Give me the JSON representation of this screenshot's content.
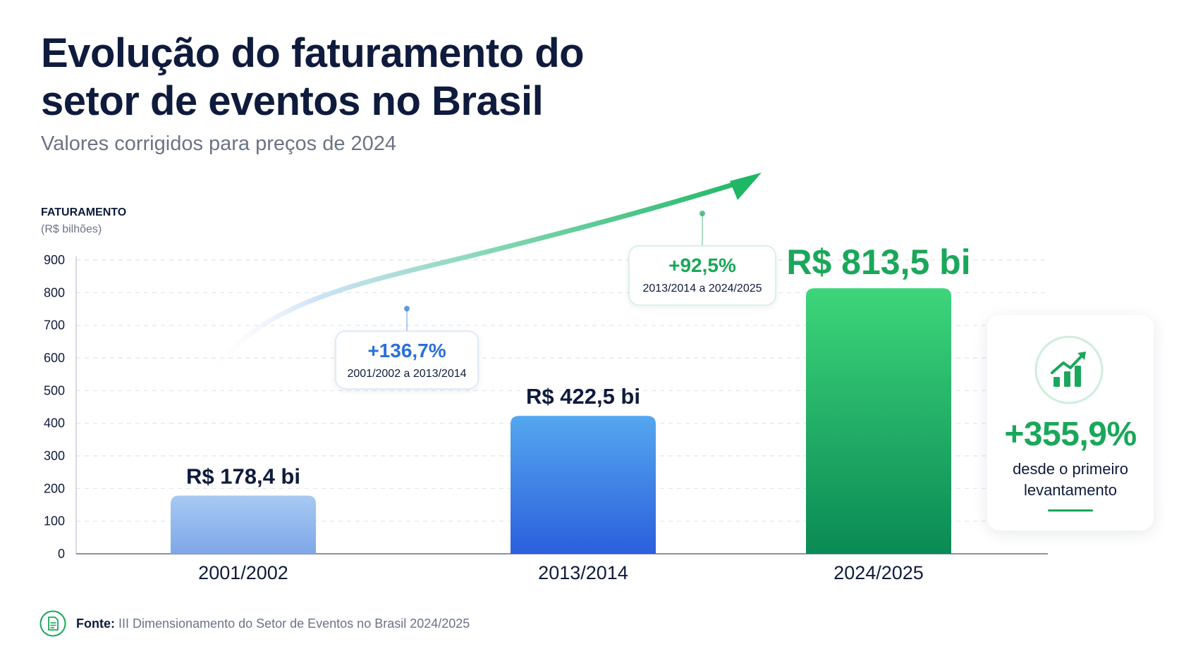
{
  "header": {
    "title_line1": "Evolução do faturamento do",
    "title_line2": "setor de eventos no Brasil",
    "subtitle": "Valores corrigidos para preços de 2024"
  },
  "chart_data": {
    "type": "bar",
    "title": "Evolução do faturamento do setor de eventos no Brasil",
    "subtitle": "Valores corrigidos para preços de 2024",
    "ylabel": "FATURAMENTO",
    "yunit": "(R$ bilhões)",
    "categories": [
      "2001/2002",
      "2013/2014",
      "2024/2025"
    ],
    "values": [
      178.4,
      422.5,
      813.5
    ],
    "value_labels": [
      "R$ 178,4 bi",
      "R$ 422,5 bi",
      "R$ 813,5 bi"
    ],
    "ylim": [
      0,
      900
    ],
    "yticks": [
      0,
      100,
      200,
      300,
      400,
      500,
      600,
      700,
      800,
      900
    ],
    "grid": true,
    "bar_colors": [
      [
        "#a7c9f3",
        "#7ea7e8"
      ],
      [
        "#55a7f0",
        "#2b5fdc"
      ],
      [
        "#3dd57a",
        "#0a8a55"
      ]
    ],
    "value_label_colors": [
      "#0f1b3d",
      "#0f1b3d",
      "#1aa75a"
    ],
    "annotations": [
      {
        "pct": "+136,7%",
        "range": "2001/2002 a 2013/2014",
        "color": "#2b6fdc",
        "anchor_value": 690
      },
      {
        "pct": "+92,5%",
        "range": "2013/2014 a 2024/2025",
        "color": "#1aa75a",
        "anchor_value": 1080
      }
    ]
  },
  "summary": {
    "value": "+355,9%",
    "text": "desde o primeiro levantamento",
    "icon": "growth-chart-icon",
    "color": "#1aa75a"
  },
  "source": {
    "label": "Fonte:",
    "text": "III Dimensionamento do Setor de Eventos no Brasil 2024/2025",
    "icon": "document-icon"
  }
}
